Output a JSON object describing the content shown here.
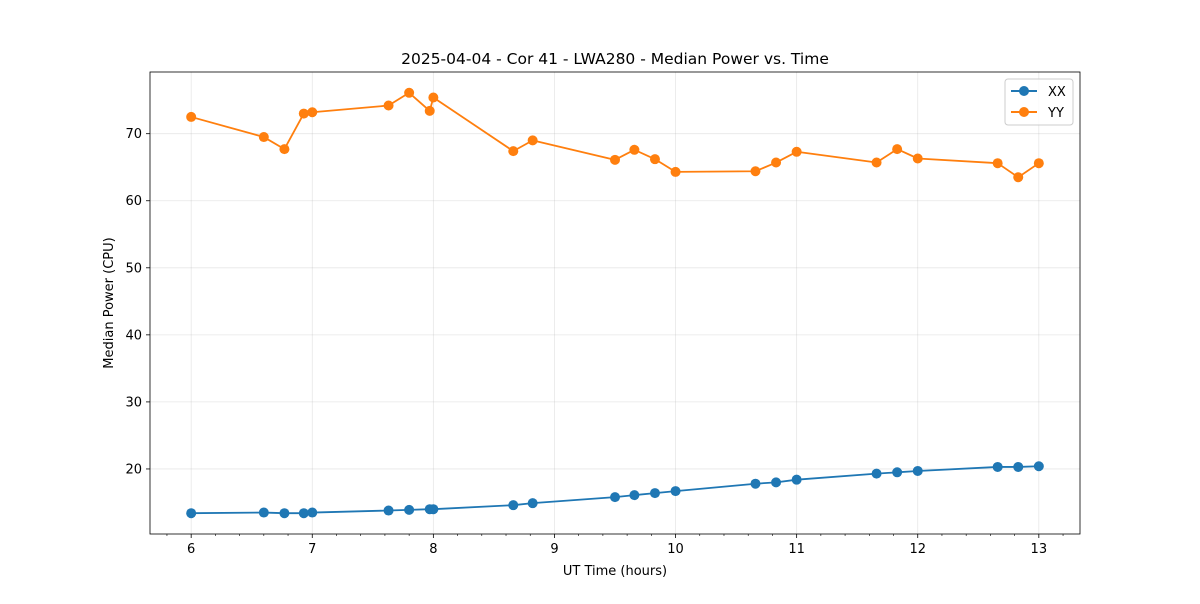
{
  "chart_data": {
    "type": "line",
    "title": "2025-04-04 - Cor 41 - LWA280 - Median Power vs. Time",
    "xlabel": "UT Time (hours)",
    "ylabel": "Median Power (CPU)",
    "xlim": [
      5.66,
      13.34
    ],
    "ylim": [
      10.3,
      79.2
    ],
    "xticks": [
      6,
      7,
      8,
      9,
      10,
      11,
      12,
      13
    ],
    "xtick_labels": [
      "6",
      "7",
      "8",
      "9",
      "10",
      "11",
      "12",
      "13"
    ],
    "yticks": [
      20,
      30,
      40,
      50,
      60,
      70
    ],
    "ytick_labels": [
      "20",
      "30",
      "40",
      "50",
      "60",
      "70"
    ],
    "grid": true,
    "legend_position": "top-right",
    "series": [
      {
        "name": "XX",
        "color": "#1f77b4",
        "x": [
          6.0,
          6.6,
          6.77,
          6.93,
          7.0,
          7.63,
          7.8,
          7.97,
          8.0,
          8.66,
          8.82,
          9.5,
          9.66,
          9.83,
          10.0,
          10.66,
          10.83,
          11.0,
          11.66,
          11.83,
          12.0,
          12.66,
          12.83,
          13.0
        ],
        "values": [
          13.4,
          13.5,
          13.4,
          13.4,
          13.5,
          13.8,
          13.9,
          14.0,
          14.0,
          14.6,
          14.9,
          15.8,
          16.1,
          16.4,
          16.7,
          17.8,
          18.0,
          18.4,
          19.3,
          19.5,
          19.7,
          20.3,
          20.3,
          20.4
        ]
      },
      {
        "name": "YY",
        "color": "#ff7f0e",
        "x": [
          6.0,
          6.6,
          6.77,
          6.93,
          7.0,
          7.63,
          7.8,
          7.97,
          8.0,
          8.66,
          8.82,
          9.5,
          9.66,
          9.83,
          10.0,
          10.66,
          10.83,
          11.0,
          11.66,
          11.83,
          12.0,
          12.66,
          12.83,
          13.0
        ],
        "values": [
          72.5,
          69.5,
          67.7,
          73.0,
          73.2,
          74.2,
          76.1,
          73.4,
          75.4,
          67.4,
          69.0,
          66.1,
          67.6,
          66.2,
          64.3,
          64.4,
          65.7,
          67.3,
          65.7,
          67.7,
          66.3,
          65.6,
          63.5,
          65.6
        ]
      }
    ]
  }
}
